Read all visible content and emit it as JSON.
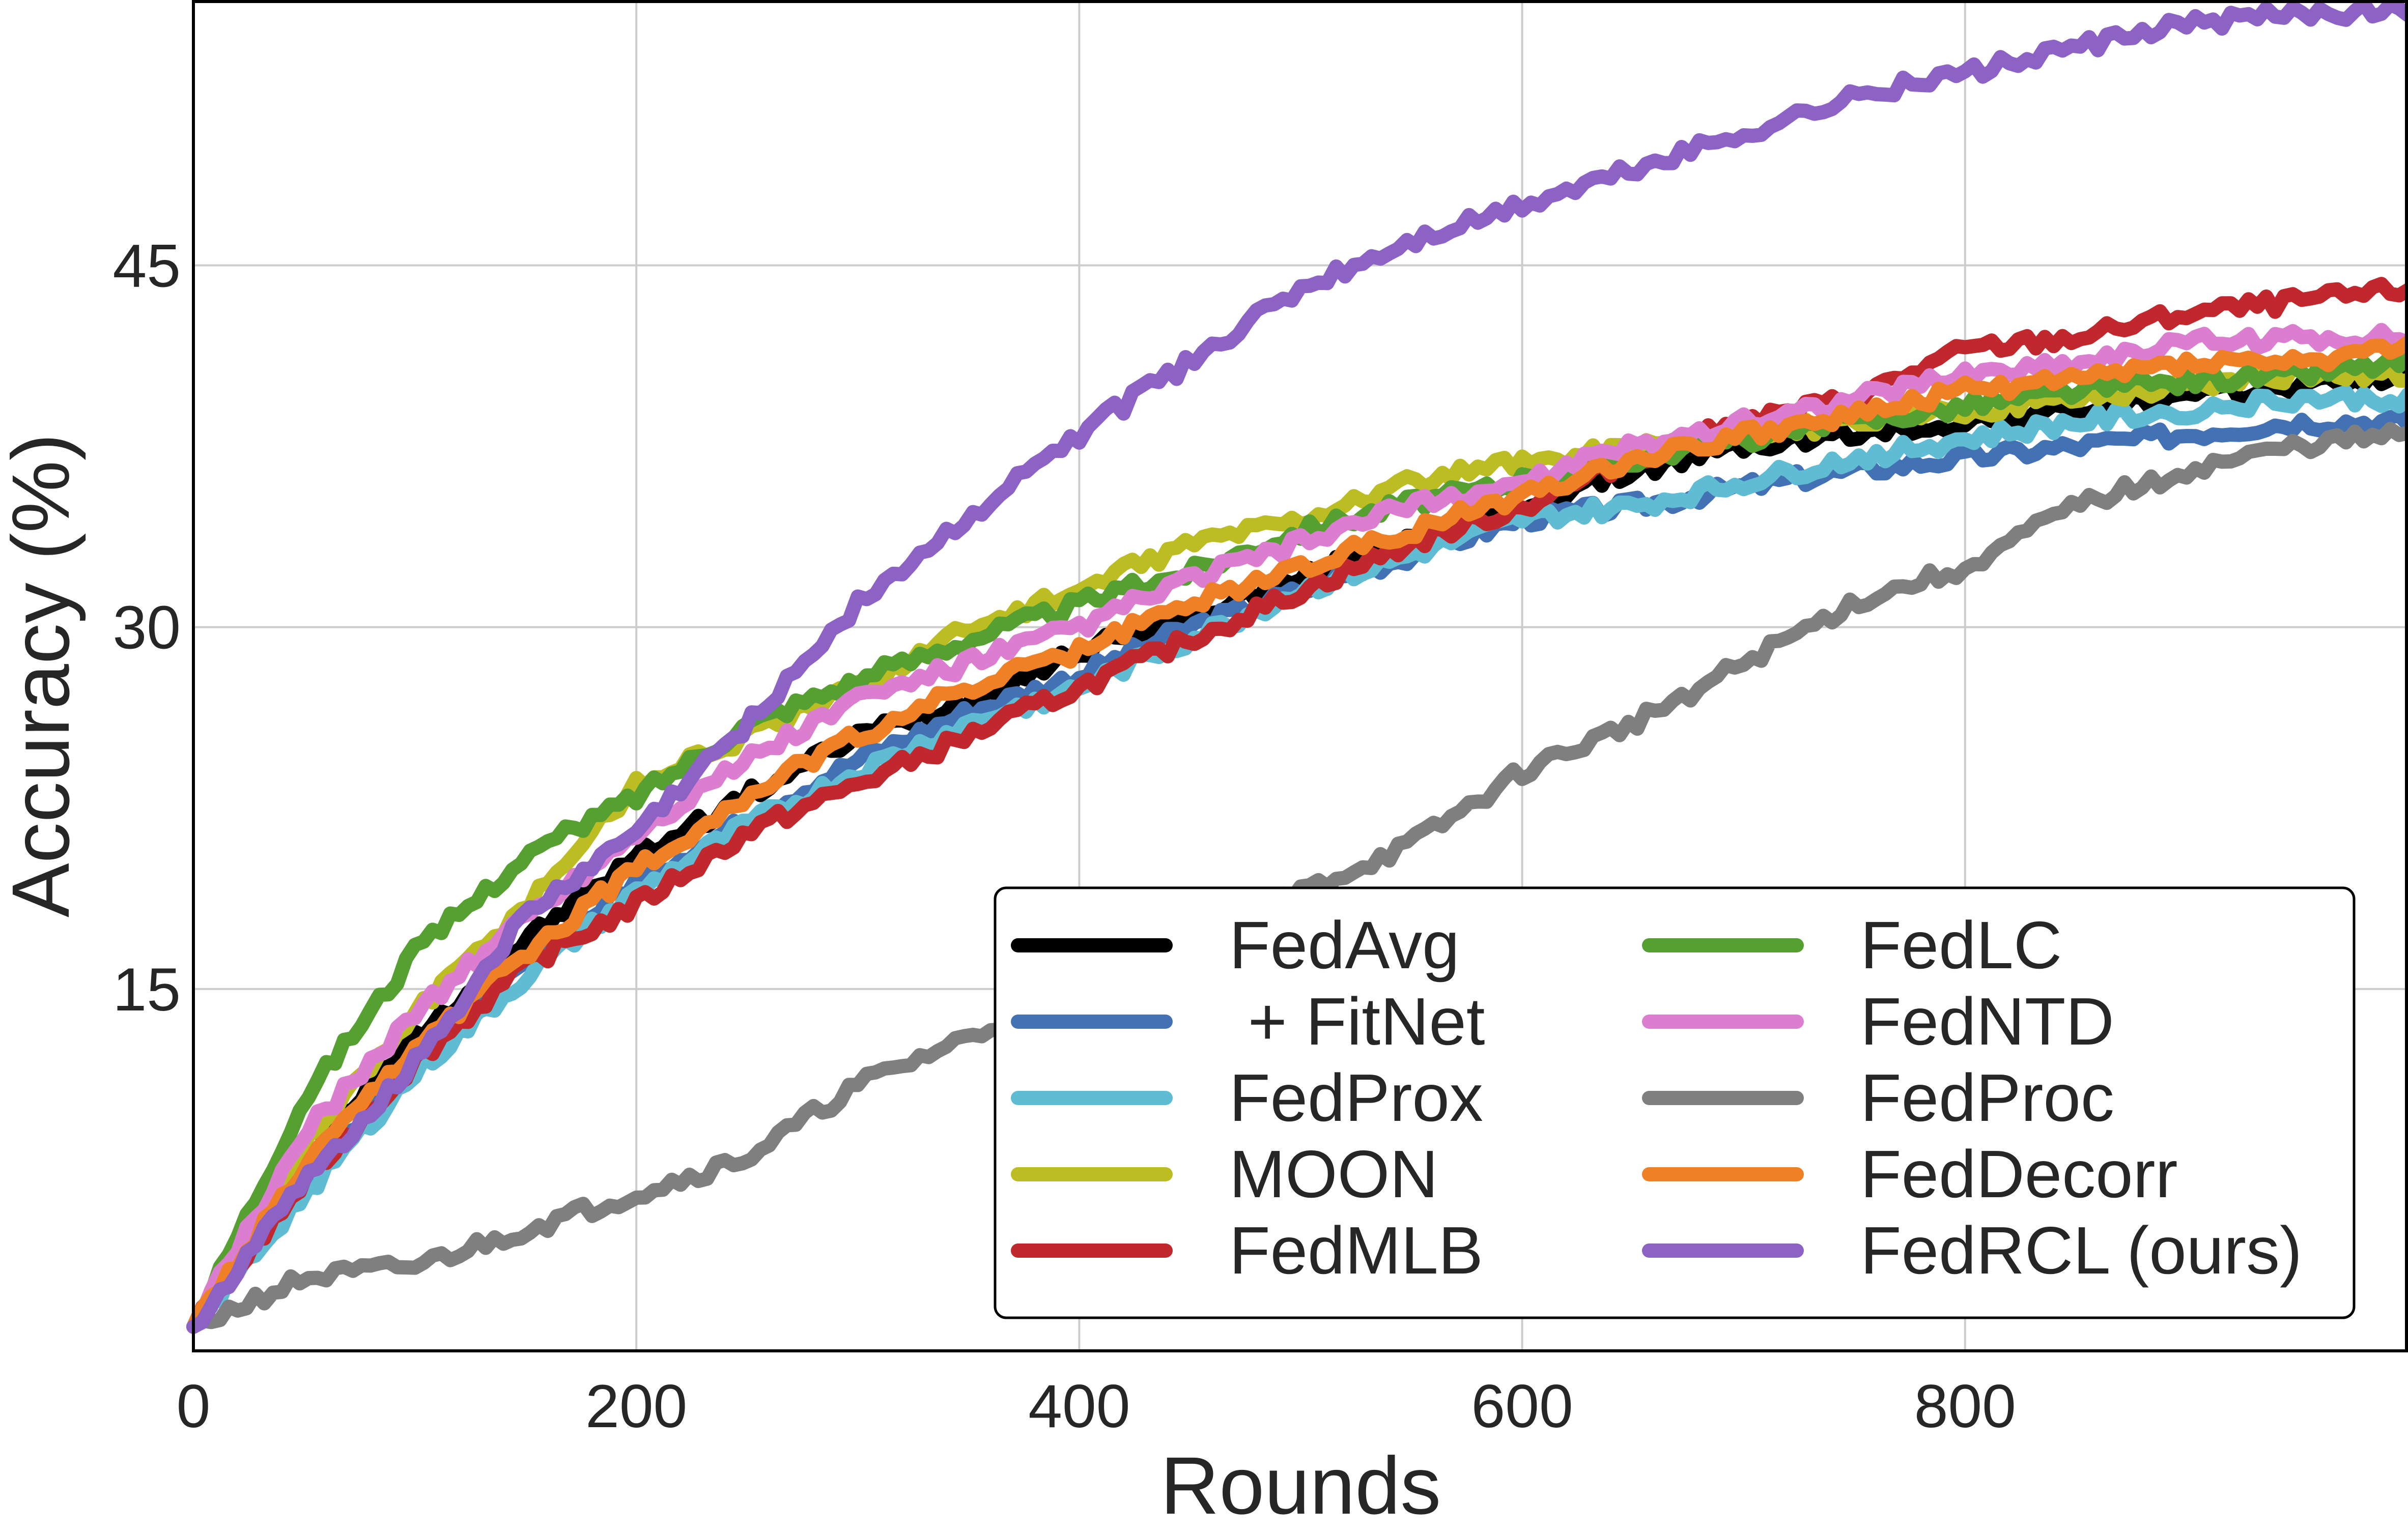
{
  "chart_data": {
    "type": "line",
    "title": "",
    "xlabel": "Rounds",
    "ylabel": "Accuracy (%)",
    "xlim": [
      0,
      1000
    ],
    "ylim": [
      0,
      56
    ],
    "xticks": [
      0,
      200,
      400,
      600,
      800
    ],
    "yticks": [
      15,
      30,
      45
    ],
    "xtick_labels": [
      "0",
      "200",
      "400",
      "600",
      "800"
    ],
    "ytick_labels": [
      "15",
      "30",
      "45"
    ],
    "grid": true,
    "legend_position": "lower-right",
    "x": [
      0,
      50,
      100,
      150,
      200,
      250,
      300,
      350,
      400,
      450,
      500,
      550,
      600,
      650,
      700,
      750,
      800,
      850,
      900,
      950,
      1000
    ],
    "series": [
      {
        "name": "FedAvg",
        "color": "#000000",
        "values": [
          1,
          8,
          13,
          17,
          20.5,
          23,
          25.5,
          27,
          29,
          30.5,
          32,
          33.8,
          35,
          36.5,
          37.5,
          38,
          38.5,
          39,
          39.5,
          40,
          40.5
        ]
      },
      {
        "name": " + FitNet",
        "color": "#4372b4",
        "values": [
          1,
          7,
          12,
          16,
          19.5,
          22,
          24.5,
          26.5,
          28,
          30,
          31.5,
          33,
          34.5,
          35,
          35.8,
          36.5,
          37,
          37.5,
          38,
          38.5,
          38.5
        ]
      },
      {
        "name": "FedProx",
        "color": "#5fbcd3",
        "values": [
          1,
          6.5,
          11.5,
          15.5,
          19,
          21.8,
          24,
          26,
          27.5,
          29.5,
          31.5,
          33,
          34.5,
          35,
          36,
          37,
          37.8,
          38.5,
          39,
          39.5,
          39.5
        ]
      },
      {
        "name": "MOON",
        "color": "#bcbd22",
        "values": [
          1,
          8.5,
          14,
          18.5,
          23.5,
          25.5,
          27.5,
          30,
          31.5,
          33.5,
          34.5,
          36,
          36.8,
          37.5,
          38,
          38.5,
          39,
          39.5,
          40,
          40.5,
          40.5
        ]
      },
      {
        "name": "FedMLB",
        "color": "#c0282d",
        "values": [
          1,
          7,
          12,
          16,
          18.5,
          21.5,
          23.5,
          25.5,
          27.5,
          29.5,
          31.5,
          33.5,
          35,
          37,
          38.5,
          39.5,
          41.5,
          42,
          43,
          43.5,
          44
        ]
      },
      {
        "name": "FedLC",
        "color": "#55a031",
        "values": [
          1,
          10.5,
          16.5,
          20.5,
          23,
          26,
          27.8,
          29.5,
          31,
          32.3,
          34,
          35.2,
          36,
          37,
          37.8,
          38.5,
          39.2,
          39.8,
          40.2,
          40.5,
          41
        ]
      },
      {
        "name": "FedNTD",
        "color": "#dc7ed0",
        "values": [
          1,
          9,
          14,
          18,
          21.5,
          24.5,
          27,
          28.5,
          30,
          32,
          33.5,
          35,
          36,
          37.5,
          38.5,
          39.5,
          40.5,
          41,
          41.8,
          42,
          42
        ]
      },
      {
        "name": "FedProc",
        "color": "#7f7f7f",
        "values": [
          1,
          3,
          3.5,
          5,
          6.5,
          8,
          11,
          13,
          15,
          17,
          19,
          21,
          24,
          26,
          28.5,
          31,
          32.5,
          35,
          36.5,
          37.5,
          38
        ]
      },
      {
        "name": "FedDecorr",
        "color": "#ef8025",
        "values": [
          1,
          7.5,
          12.5,
          16.5,
          20,
          23,
          25.5,
          27.5,
          29,
          31,
          32.5,
          34,
          35.5,
          37,
          38,
          38.8,
          39.8,
          40.3,
          41,
          41,
          41.5
        ]
      },
      {
        "name": "FedRCL (ours)",
        "color": "#8c62c4",
        "values": [
          1,
          7,
          12,
          18,
          21.5,
          26,
          31,
          34.5,
          38,
          41,
          44,
          46,
          47.5,
          49,
          50.5,
          52,
          53,
          54,
          55,
          55.5,
          55.5
        ]
      }
    ]
  }
}
